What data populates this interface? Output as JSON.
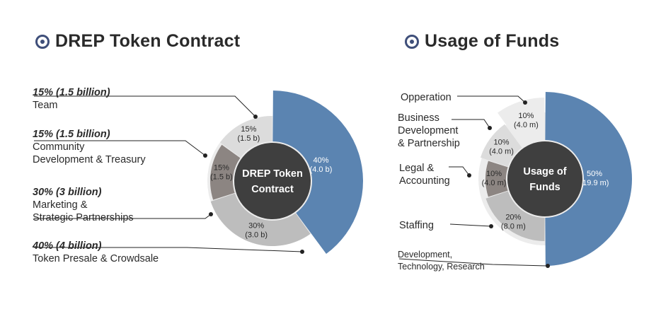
{
  "colors": {
    "blue": "#5b84b1",
    "dark": "#3f3f3f",
    "taupe": "#8c8582",
    "mid_gray": "#bdbdbd",
    "light_gray": "#dcdcdc",
    "faint_gray": "#ececec",
    "icon_blue": "#3f4f7a"
  },
  "left": {
    "title": "DREP Token Contract",
    "labels": [
      {
        "pct": "15% (1.5 billion)",
        "lines": [
          "Team"
        ]
      },
      {
        "pct": "15% (1.5 billion)",
        "lines": [
          "Community",
          "Development & Treasury"
        ]
      },
      {
        "pct": "30%  (3 billion)",
        "lines": [
          "Marketing &",
          "Strategic Partnerships"
        ]
      },
      {
        "pct": "40% (4 billion)",
        "lines": [
          "Token Presale & Crowdsale"
        ]
      }
    ]
  },
  "right": {
    "title": "Usage of Funds",
    "labels": [
      {
        "lines": [
          "Opperation"
        ]
      },
      {
        "lines": [
          "Business",
          "Development",
          "& Partnership"
        ]
      },
      {
        "lines": [
          "Legal &",
          "Accounting"
        ]
      },
      {
        "lines": [
          "Staffing"
        ]
      },
      {
        "lines": [
          "Development,",
          "Technology, Research"
        ]
      }
    ]
  },
  "chart_data": [
    {
      "type": "pie",
      "title": "DREP Token Contract",
      "center_label": [
        "DREP Token",
        "Contract"
      ],
      "slices": [
        {
          "name": "Token Presale & Crowdsale",
          "value": 40,
          "label": [
            "40%",
            "(4.0 b)"
          ]
        },
        {
          "name": "Marketing & Strategic Partnerships",
          "value": 30,
          "label": [
            "30%",
            "(3.0 b)"
          ]
        },
        {
          "name": "Community Development & Treasury",
          "value": 15,
          "label": [
            "15%",
            "(1.5 b)"
          ]
        },
        {
          "name": "Team",
          "value": 15,
          "label": [
            "15%",
            "(1.5 b)"
          ]
        }
      ]
    },
    {
      "type": "pie",
      "title": "Usage of Funds",
      "center_label": [
        "Usage of",
        "Funds"
      ],
      "slices": [
        {
          "name": "Development, Technology, Research",
          "value": 50,
          "label": [
            "50%",
            "(19.9 m)"
          ]
        },
        {
          "name": "Staffing",
          "value": 20,
          "label": [
            "20%",
            "(8.0 m)"
          ]
        },
        {
          "name": "Legal & Accounting",
          "value": 10,
          "label": [
            "10%",
            "(4.0 m)"
          ]
        },
        {
          "name": "Business Development & Partnership",
          "value": 10,
          "label": [
            "10%",
            "(4.0 m)"
          ]
        },
        {
          "name": "Opperation",
          "value": 10,
          "label": [
            "10%",
            "(4.0 m)"
          ]
        }
      ]
    }
  ]
}
